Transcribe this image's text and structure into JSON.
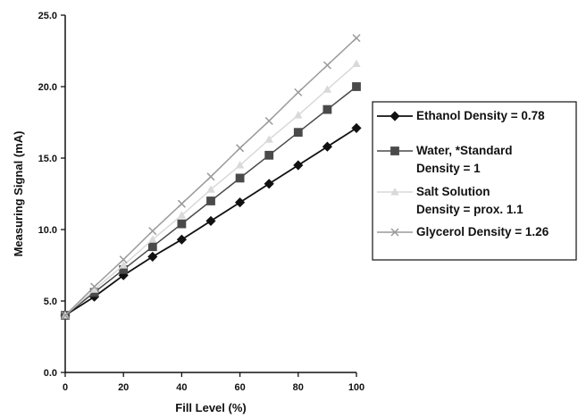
{
  "chart_data": {
    "type": "line",
    "title": "",
    "xlabel": "Fill Level (%)",
    "ylabel": "Measuring Signal (mA)",
    "x": [
      0,
      10,
      20,
      30,
      40,
      50,
      60,
      70,
      80,
      90,
      100
    ],
    "xlim": [
      0,
      100
    ],
    "ylim": [
      0,
      25
    ],
    "x_ticks": [
      0,
      20,
      40,
      60,
      80,
      100
    ],
    "x_tick_labels": [
      "0",
      "20",
      "40",
      "60",
      "80",
      "100"
    ],
    "y_ticks": [
      0,
      5,
      10,
      15,
      20,
      25
    ],
    "y_tick_labels": [
      "0.0",
      "5.0",
      "10.0",
      "15.0",
      "20.0",
      "25.0"
    ],
    "grid": false,
    "legend_position": "right",
    "series": [
      {
        "name_lines": [
          "Ethanol Density = 0.78"
        ],
        "marker": "diamond",
        "color": "#111111",
        "values": [
          4.0,
          5.3,
          6.8,
          8.1,
          9.3,
          10.6,
          11.9,
          13.2,
          14.5,
          15.8,
          17.1
        ]
      },
      {
        "name_lines": [
          "Water, *Standard",
          "Density = 1"
        ],
        "marker": "square",
        "color": "#4a4a4a",
        "values": [
          4.0,
          5.6,
          7.2,
          8.8,
          10.4,
          12.0,
          13.6,
          15.2,
          16.8,
          18.4,
          20.0
        ]
      },
      {
        "name_lines": [
          "Salt Solution",
          "Density = prox. 1.1"
        ],
        "marker": "triangle",
        "color": "#d9d9d9",
        "values": [
          4.0,
          5.8,
          7.5,
          9.3,
          11.0,
          12.8,
          14.5,
          16.3,
          18.0,
          19.8,
          21.6
        ]
      },
      {
        "name_lines": [
          "Glycerol Density = 1.26"
        ],
        "marker": "x",
        "color": "#9a9a9a",
        "values": [
          4.0,
          6.0,
          7.9,
          9.9,
          11.8,
          13.7,
          15.7,
          17.6,
          19.6,
          21.5,
          23.4
        ]
      }
    ]
  }
}
